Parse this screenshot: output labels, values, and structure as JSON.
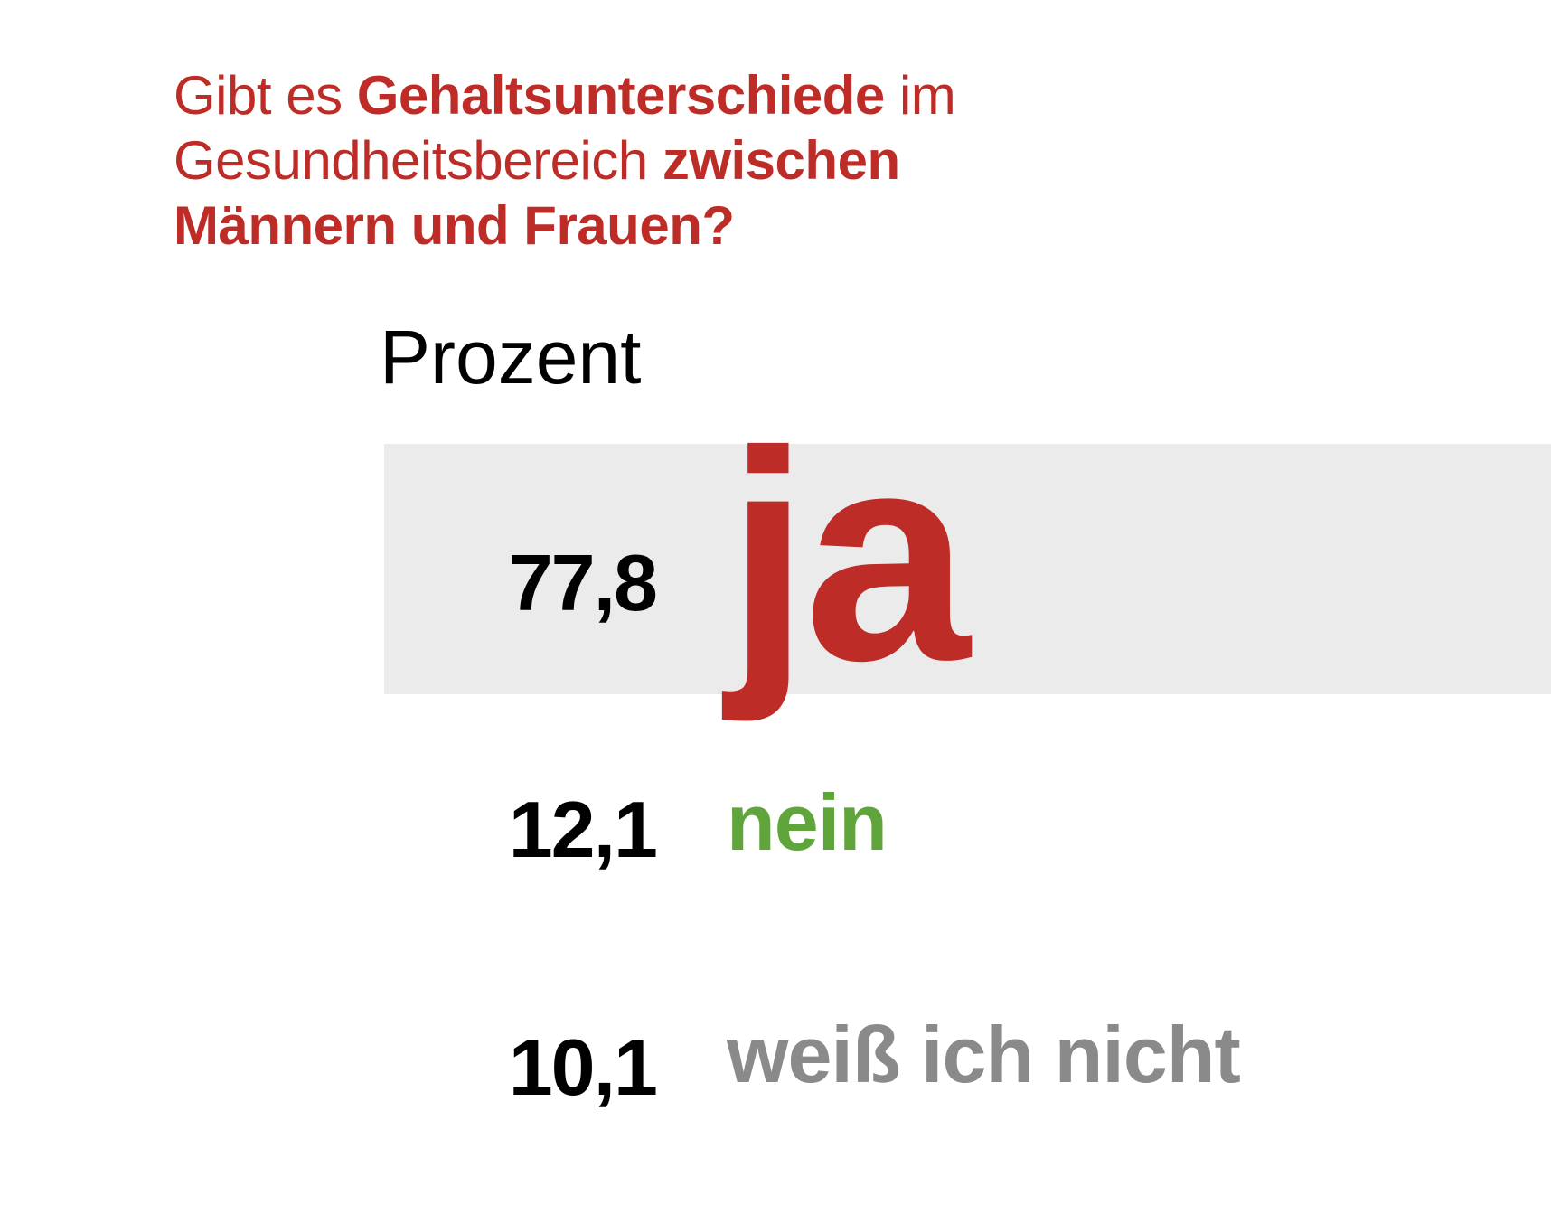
{
  "title": {
    "line1_regular_a": "Gibt es ",
    "line1_bold": "Gehaltsunterschiede",
    "line1_regular_b": " im",
    "line2_regular": "Gesundheitsbereich ",
    "line2_bold": "zwischen",
    "line3_bold": "Männern und Frauen?"
  },
  "colors": {
    "title": "#bd2c26",
    "highlight_band": "#ebebeb",
    "values": "#000000"
  },
  "chart_data": {
    "type": "table",
    "unit_label": "Prozent",
    "rows": [
      {
        "label": "ja",
        "value": 77.8,
        "value_text": "77,8",
        "color": "#bd2c26",
        "highlighted": true
      },
      {
        "label": "nein",
        "value": 12.1,
        "value_text": "12,1",
        "color": "#5fa53c",
        "highlighted": false
      },
      {
        "label": "weiß ich nicht",
        "value": 10.1,
        "value_text": "10,1",
        "color": "#8a8a8a",
        "highlighted": false
      }
    ]
  }
}
